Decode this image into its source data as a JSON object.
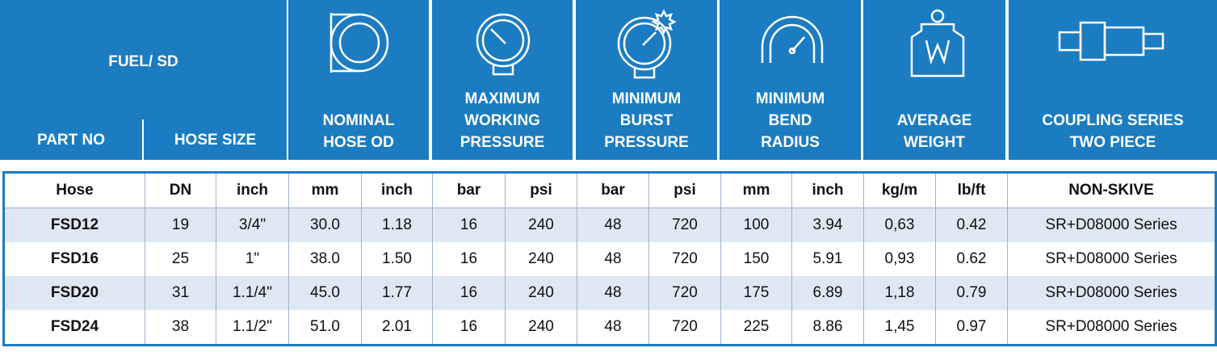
{
  "header": {
    "product": "FUEL/ SD",
    "columns": [
      [
        "PART NO"
      ],
      [
        "HOSE SIZE"
      ],
      [
        "NOMINAL",
        "HOSE OD"
      ],
      [
        "MAXIMUM",
        "WORKING",
        "PRESSURE"
      ],
      [
        "MINIMUM",
        "BURST",
        "PRESSURE"
      ],
      [
        "MINIMUM",
        "BEND",
        "RADIUS"
      ],
      [
        "AVERAGE",
        "WEIGHT"
      ],
      [
        "COUPLING SERIES",
        "TWO PIECE"
      ]
    ]
  },
  "table": {
    "units": [
      "Hose",
      "DN",
      "inch",
      "mm",
      "inch",
      "bar",
      "psi",
      "bar",
      "psi",
      "mm",
      "inch",
      "kg/m",
      "lb/ft",
      "NON-SKIVE"
    ],
    "rows": [
      [
        "FSD12",
        "19",
        "3/4\"",
        "30.0",
        "1.18",
        "16",
        "240",
        "48",
        "720",
        "100",
        "3.94",
        "0,63",
        "0.42",
        "SR+D08000 Series"
      ],
      [
        "FSD16",
        "25",
        "1\"",
        "38.0",
        "1.50",
        "16",
        "240",
        "48",
        "720",
        "150",
        "5.91",
        "0,93",
        "0.62",
        "SR+D08000 Series"
      ],
      [
        "FSD20",
        "31",
        "1.1/4\"",
        "45.0",
        "1.77",
        "16",
        "240",
        "48",
        "720",
        "175",
        "6.89",
        "1,18",
        "0.79",
        "SR+D08000 Series"
      ],
      [
        "FSD24",
        "38",
        "1.1/2\"",
        "51.0",
        "2.01",
        "16",
        "240",
        "48",
        "720",
        "225",
        "8.86",
        "1,45",
        "0.97",
        "SR+D08000 Series"
      ]
    ]
  }
}
